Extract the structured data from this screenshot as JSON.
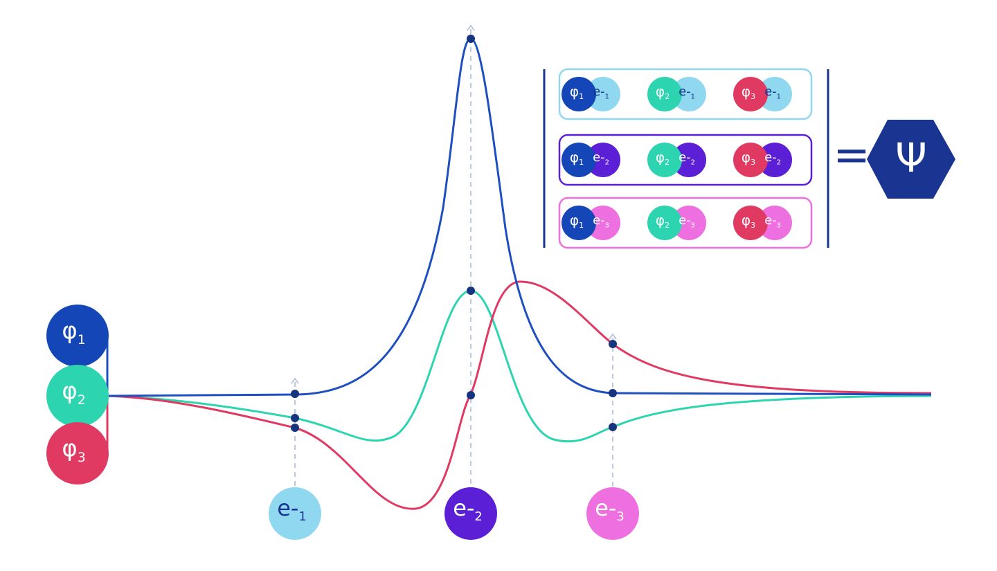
{
  "orbitals": [
    {
      "symbol": "φ",
      "sub": "1"
    },
    {
      "symbol": "φ",
      "sub": "2"
    },
    {
      "symbol": "φ",
      "sub": "3"
    }
  ],
  "electrons": [
    {
      "symbol": "e-",
      "sub": "1"
    },
    {
      "symbol": "e-",
      "sub": "2"
    },
    {
      "symbol": "e-",
      "sub": "3"
    }
  ],
  "matrix": {
    "rows": [
      [
        {
          "orbital": {
            "symbol": "φ",
            "sub": "1"
          },
          "electron": {
            "symbol": "e-",
            "sub": "1"
          }
        },
        {
          "orbital": {
            "symbol": "φ",
            "sub": "2"
          },
          "electron": {
            "symbol": "e-",
            "sub": "1"
          }
        },
        {
          "orbital": {
            "symbol": "φ",
            "sub": "3"
          },
          "electron": {
            "symbol": "e-",
            "sub": "1"
          }
        }
      ],
      [
        {
          "orbital": {
            "symbol": "φ",
            "sub": "1"
          },
          "electron": {
            "symbol": "e-",
            "sub": "2"
          }
        },
        {
          "orbital": {
            "symbol": "φ",
            "sub": "2"
          },
          "electron": {
            "symbol": "e-",
            "sub": "2"
          }
        },
        {
          "orbital": {
            "symbol": "φ",
            "sub": "3"
          },
          "electron": {
            "symbol": "e-",
            "sub": "2"
          }
        }
      ],
      [
        {
          "orbital": {
            "symbol": "φ",
            "sub": "1"
          },
          "electron": {
            "symbol": "e-",
            "sub": "3"
          }
        },
        {
          "orbital": {
            "symbol": "φ",
            "sub": "2"
          },
          "electron": {
            "symbol": "e-",
            "sub": "3"
          }
        },
        {
          "orbital": {
            "symbol": "φ",
            "sub": "3"
          },
          "electron": {
            "symbol": "e-",
            "sub": "3"
          }
        }
      ]
    ]
  },
  "result": {
    "equals": "=",
    "symbol": "Ψ"
  }
}
